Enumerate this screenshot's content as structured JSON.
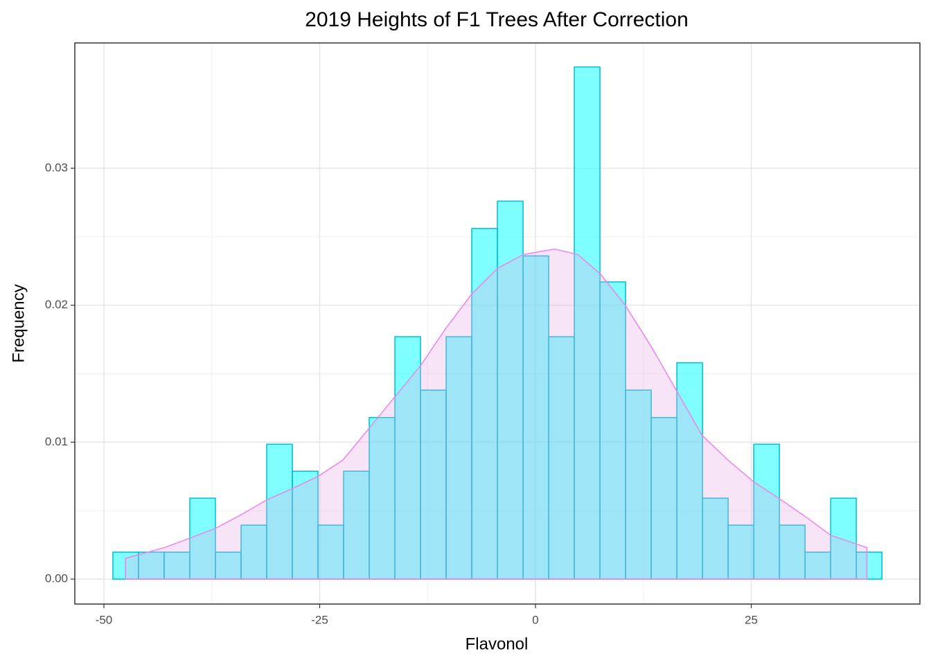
{
  "chart_data": {
    "type": "histogram",
    "title": "2019 Heights of F1 Trees After Correction",
    "x_label": "Flavonol",
    "y_label": "Frequency",
    "bins": [
      -48.96,
      -45.99,
      -43.02,
      -40.05,
      -37.08,
      -34.11,
      -31.14,
      -28.17,
      -25.2,
      -22.23,
      -19.26,
      -16.29,
      -13.32,
      -10.35,
      -7.38,
      -4.41,
      -1.44,
      1.53,
      4.5,
      7.47,
      10.44,
      13.41,
      16.38,
      19.35,
      22.32,
      25.29,
      28.26,
      31.23,
      34.2,
      37.17,
      40.14
    ],
    "values": [
      0.00197,
      0.00197,
      0.00197,
      0.00591,
      0.00197,
      0.00394,
      0.00985,
      0.00788,
      0.00394,
      0.00788,
      0.0118,
      0.0177,
      0.0138,
      0.0177,
      0.0256,
      0.0276,
      0.0236,
      0.0177,
      0.0374,
      0.0217,
      0.0138,
      0.0118,
      0.0158,
      0.00591,
      0.00394,
      0.00985,
      0.00394,
      0.00197,
      0.00591,
      0.00197
    ],
    "color": "#00ffff",
    "edgecolor": "#00bcd4",
    "density": {
      "x": [
        -47.5,
        -43,
        -40,
        -37.1,
        -34.1,
        -31.1,
        -28.2,
        -25.2,
        -22.3,
        -19.3,
        -16.3,
        -13.3,
        -10.4,
        -7.4,
        -4.4,
        -1.4,
        2.2,
        4.9,
        7.5,
        10.4,
        13.4,
        16.4,
        19.3,
        22.3,
        25.3,
        28.2,
        31.2,
        34.2,
        38.4
      ],
      "values": [
        0.00152,
        0.0023,
        0.003,
        0.0037,
        0.0047,
        0.0058,
        0.0066,
        0.0075,
        0.0087,
        0.011,
        0.0133,
        0.0156,
        0.0183,
        0.0208,
        0.0227,
        0.0237,
        0.0241,
        0.0237,
        0.0223,
        0.02,
        0.017,
        0.0137,
        0.0105,
        0.0087,
        0.0071,
        0.0059,
        0.0046,
        0.0032,
        0.0023
      ],
      "line_color": "#ee82ee",
      "fill_color": "#e6a8e6"
    },
    "xlim": [
      -53.37,
      44.54
    ],
    "ylim": [
      -0.00182,
      0.03915
    ],
    "xticks": [
      -50,
      -25,
      0,
      25
    ],
    "yticks": [
      {
        "value": 0,
        "label": "0.00"
      },
      {
        "value": 0.01,
        "label": "0.01"
      },
      {
        "value": 0.02,
        "label": "0.02"
      },
      {
        "value": 0.03,
        "label": "0.03"
      }
    ],
    "grid": true
  }
}
